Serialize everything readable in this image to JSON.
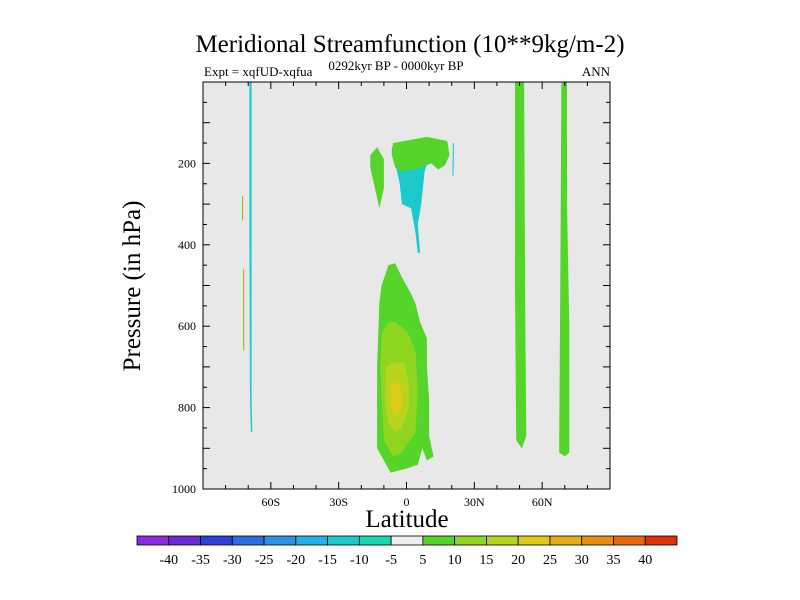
{
  "chart_data": {
    "type": "heatmap",
    "title": "Meridional Streamfunction (10**9kg/m-2)",
    "left_string": "Expt = xqfUD-xqfua",
    "center_string": "0292kyr BP - 0000kyr BP",
    "right_string": "ANN",
    "xlabel": "Latitude",
    "ylabel": "Pressure (in hPa)",
    "xlim": [
      -90,
      90
    ],
    "ylim": [
      1000,
      0
    ],
    "x_ticks": [
      {
        "value": -60,
        "label": "60S"
      },
      {
        "value": -30,
        "label": "30S"
      },
      {
        "value": 0,
        "label": "0"
      },
      {
        "value": 30,
        "label": "30N"
      },
      {
        "value": 60,
        "label": "60N"
      }
    ],
    "y_ticks": [
      200,
      400,
      600,
      800,
      1000
    ],
    "colorbar": {
      "labels": [
        "-40",
        "-35",
        "-30",
        "-25",
        "-20",
        "-15",
        "-10",
        "-5",
        "5",
        "10",
        "15",
        "20",
        "25",
        "30",
        "35",
        "40"
      ],
      "colors": [
        "#8a2be2",
        "#6a2ad6",
        "#2f3fd8",
        "#2a6ee0",
        "#2a92e6",
        "#22b2e8",
        "#1ccacc",
        "#1cd8b0",
        "#eeeeee",
        "#55d42a",
        "#8ed620",
        "#b8d41c",
        "#dccc18",
        "#e6ae16",
        "#e88c14",
        "#e46612",
        "#e03010"
      ]
    },
    "regions": [
      {
        "level": "-10",
        "color": "#1ccacc",
        "points": [
          [
            -69.5,
            0
          ],
          [
            -68.5,
            0
          ],
          [
            -68.5,
            780
          ],
          [
            -68.2,
            860
          ],
          [
            -68.8,
            860
          ],
          [
            -69.2,
            780
          ],
          [
            -69.5,
            400
          ]
        ]
      },
      {
        "level": "-10",
        "color": "#1ccacc",
        "points": [
          [
            -6.5,
            160
          ],
          [
            5,
            145
          ],
          [
            10,
            150
          ],
          [
            11,
            170
          ],
          [
            8,
            220
          ],
          [
            6.5,
            300
          ],
          [
            5,
            350
          ],
          [
            6,
            420
          ],
          [
            5,
            420
          ],
          [
            4,
            370
          ],
          [
            2,
            310
          ],
          [
            -2,
            300
          ],
          [
            -3,
            250
          ],
          [
            -5,
            200
          ],
          [
            -6.5,
            180
          ]
        ]
      },
      {
        "level": "-10",
        "color": "#1ccacc",
        "points": [
          [
            -4,
            185
          ],
          [
            0,
            170
          ],
          [
            3,
            190
          ],
          [
            1,
            240
          ],
          [
            -2,
            230
          ]
        ]
      },
      {
        "level": "-10",
        "color": "#1ccacc",
        "points": [
          [
            49,
            0
          ],
          [
            51,
            0
          ],
          [
            51.5,
            550
          ],
          [
            52,
            880
          ],
          [
            51,
            890
          ],
          [
            49.5,
            870
          ],
          [
            49,
            500
          ]
        ]
      },
      {
        "level": "-10",
        "color": "#1ccacc",
        "points": [
          [
            69.5,
            0
          ],
          [
            70.5,
            0
          ],
          [
            70.2,
            300
          ],
          [
            71,
            600
          ],
          [
            71,
            900
          ],
          [
            70,
            910
          ],
          [
            68.5,
            900
          ],
          [
            69,
            500
          ]
        ]
      },
      {
        "level": "-10",
        "color": "#1ccacc",
        "points": [
          [
            20.5,
            150
          ],
          [
            21,
            150
          ],
          [
            20.8,
            230
          ],
          [
            20.3,
            230
          ]
        ]
      },
      {
        "level": "5",
        "color": "#55d42a",
        "points": [
          [
            -16,
            180
          ],
          [
            -13,
            160
          ],
          [
            -10,
            190
          ],
          [
            -10,
            260
          ],
          [
            -12,
            310
          ],
          [
            -14,
            260
          ],
          [
            -16,
            210
          ]
        ]
      },
      {
        "level": "5",
        "color": "#55d42a",
        "points": [
          [
            -6,
            150
          ],
          [
            9,
            135
          ],
          [
            18,
            145
          ],
          [
            19,
            180
          ],
          [
            17,
            205
          ],
          [
            14,
            215
          ],
          [
            11,
            200
          ],
          [
            6,
            210
          ],
          [
            -2,
            220
          ],
          [
            -5,
            210
          ],
          [
            -6.5,
            180
          ]
        ]
      },
      {
        "level": "5",
        "color": "#55d42a",
        "points": [
          [
            -12,
            540
          ],
          [
            -11,
            500
          ],
          [
            -8,
            450
          ],
          [
            -5,
            445
          ],
          [
            -2,
            480
          ],
          [
            2,
            520
          ],
          [
            4,
            545
          ],
          [
            6,
            590
          ],
          [
            9,
            630
          ],
          [
            9,
            700
          ],
          [
            10,
            780
          ],
          [
            10,
            870
          ],
          [
            12,
            920
          ],
          [
            9,
            930
          ],
          [
            7,
            900
          ],
          [
            5,
            940
          ],
          [
            0,
            950
          ],
          [
            -4,
            955
          ],
          [
            -7,
            960
          ],
          [
            -10,
            930
          ],
          [
            -13,
            900
          ],
          [
            -13,
            800
          ],
          [
            -13,
            700
          ]
        ]
      },
      {
        "level": "5",
        "color": "#55d42a",
        "points": [
          [
            48,
            0
          ],
          [
            52,
            0
          ],
          [
            52.5,
            560
          ],
          [
            53,
            870
          ],
          [
            51,
            900
          ],
          [
            48.5,
            880
          ],
          [
            48,
            500
          ]
        ]
      },
      {
        "level": "5",
        "color": "#55d42a",
        "points": [
          [
            68.5,
            0
          ],
          [
            71,
            0
          ],
          [
            71,
            300
          ],
          [
            72,
            600
          ],
          [
            72,
            910
          ],
          [
            70,
            920
          ],
          [
            67.5,
            910
          ],
          [
            68,
            500
          ]
        ]
      },
      {
        "level": "10",
        "color": "#8ed620",
        "points": [
          [
            -11,
            620
          ],
          [
            -8,
            590
          ],
          [
            -5,
            590
          ],
          [
            0,
            610
          ],
          [
            4,
            660
          ],
          [
            5,
            760
          ],
          [
            4,
            860
          ],
          [
            -2,
            910
          ],
          [
            -6,
            920
          ],
          [
            -10,
            880
          ],
          [
            -11,
            780
          ],
          [
            -11.5,
            700
          ]
        ]
      },
      {
        "level": "15",
        "color": "#b8d41c",
        "points": [
          [
            -9,
            700
          ],
          [
            -6,
            690
          ],
          [
            -1,
            690
          ],
          [
            1,
            740
          ],
          [
            1,
            800
          ],
          [
            -2,
            850
          ],
          [
            -5,
            860
          ],
          [
            -8,
            840
          ],
          [
            -9.5,
            780
          ]
        ]
      },
      {
        "level": "20",
        "color": "#dccc18",
        "points": [
          [
            -7,
            745
          ],
          [
            -4,
            735
          ],
          [
            -2,
            760
          ],
          [
            -2,
            800
          ],
          [
            -5,
            820
          ],
          [
            -7,
            795
          ]
        ]
      }
    ],
    "lines": [
      {
        "level": "5",
        "color": "#aaaa00",
        "points": [
          [
            -72.5,
            280
          ],
          [
            -72.5,
            340
          ]
        ]
      },
      {
        "level": "5",
        "color": "#aaaa00",
        "points": [
          [
            -72,
            460
          ],
          [
            -72,
            660
          ]
        ]
      }
    ]
  }
}
